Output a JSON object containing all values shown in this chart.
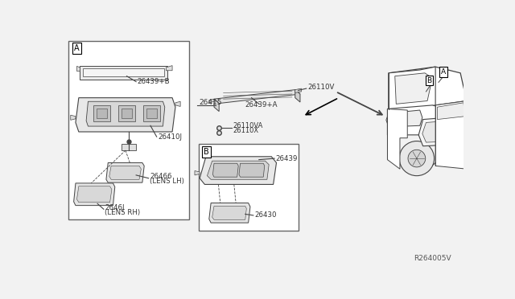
{
  "bg_color": "#f2f2f2",
  "white": "#ffffff",
  "line_color": "#444444",
  "text_color": "#333333",
  "border_color": "#666666",
  "diagram_ref": "R264005V",
  "box_A_label": "A",
  "box_B_label": "B",
  "car_label_A": "A",
  "car_label_B": "B",
  "part_26439B": "26439+B",
  "part_26410J": "26410J",
  "part_26466": "26466",
  "part_26466b": "(LENS LH)",
  "part_2646J": "2646J",
  "part_2646Jb": "(LENS RH)",
  "part_26415": "26415",
  "part_26110V": "26110V",
  "part_26439A": "26439+A",
  "part_26110VA": "26110VA",
  "part_26110X": "26110X",
  "part_26439": "26439",
  "part_26430": "26430"
}
